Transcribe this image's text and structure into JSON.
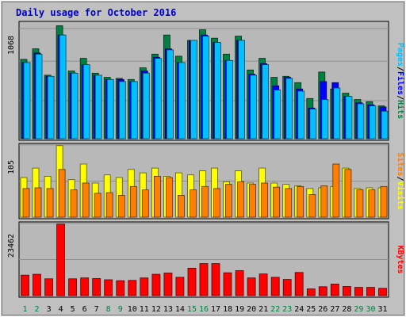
{
  "title": "Daily usage for October 2016",
  "colors": {
    "background": "#c0c0c0",
    "plot_bg": "#b8b8b8",
    "title": "#0000cc",
    "hits": "#008040",
    "files": "#0000ff",
    "pages": "#00c0ff",
    "visits": "#ffff00",
    "sites": "#ff8000",
    "kbytes": "#ff0000",
    "weekend_label": "#008040",
    "weekday_label": "#000000"
  },
  "chart_data": [
    {
      "type": "bar",
      "name": "hits-files-pages",
      "categories": [
        "1",
        "2",
        "3",
        "4",
        "5",
        "6",
        "7",
        "8",
        "9",
        "10",
        "11",
        "12",
        "13",
        "14",
        "15",
        "16",
        "17",
        "18",
        "19",
        "20",
        "21",
        "22",
        "23",
        "24",
        "25",
        "26",
        "27",
        "28",
        "29",
        "30",
        "31"
      ],
      "ymax_label": "1068",
      "ylim": [
        0,
        1068
      ],
      "legend": [
        {
          "label": "Pages",
          "key": "pages"
        },
        {
          "label": "/",
          "key": "sep"
        },
        {
          "label": "Files",
          "key": "files"
        },
        {
          "label": "/",
          "key": "sep"
        },
        {
          "label": "Hits",
          "key": "hits"
        }
      ],
      "series": [
        {
          "name": "Hits",
          "key": "hits",
          "values": [
            750,
            850,
            600,
            1068,
            640,
            760,
            620,
            580,
            570,
            560,
            670,
            800,
            980,
            780,
            930,
            1030,
            950,
            800,
            970,
            650,
            760,
            580,
            590,
            530,
            380,
            630,
            470,
            430,
            370,
            350,
            310
          ]
        },
        {
          "name": "Files",
          "key": "files",
          "values": [
            720,
            810,
            590,
            980,
            620,
            700,
            600,
            560,
            560,
            540,
            640,
            770,
            850,
            720,
            930,
            980,
            910,
            740,
            930,
            610,
            710,
            500,
            580,
            470,
            290,
            540,
            530,
            400,
            340,
            320,
            300
          ]
        },
        {
          "name": "Pages",
          "key": "pages",
          "values": [
            720,
            800,
            590,
            980,
            620,
            700,
            600,
            560,
            540,
            540,
            620,
            760,
            840,
            720,
            930,
            970,
            910,
            740,
            930,
            600,
            700,
            460,
            570,
            450,
            280,
            370,
            480,
            400,
            330,
            310,
            260
          ]
        }
      ],
      "weekend_days": [
        1,
        2,
        8,
        9,
        15,
        16,
        22,
        23,
        29,
        30
      ]
    },
    {
      "type": "bar",
      "name": "visits-sites",
      "categories": [
        "1",
        "2",
        "3",
        "4",
        "5",
        "6",
        "7",
        "8",
        "9",
        "10",
        "11",
        "12",
        "13",
        "14",
        "15",
        "16",
        "17",
        "18",
        "19",
        "20",
        "21",
        "22",
        "23",
        "24",
        "25",
        "26",
        "27",
        "28",
        "29",
        "30",
        "31"
      ],
      "ymax_label": "105",
      "ylim": [
        0,
        105
      ],
      "legend": [
        {
          "label": "Sites",
          "key": "sites"
        },
        {
          "label": "/",
          "key": "sep"
        },
        {
          "label": "Visits",
          "key": "visits"
        }
      ],
      "series": [
        {
          "name": "Visits",
          "key": "visits",
          "values": [
            58,
            72,
            60,
            105,
            55,
            78,
            50,
            62,
            58,
            70,
            65,
            72,
            60,
            65,
            62,
            68,
            72,
            52,
            68,
            50,
            72,
            50,
            48,
            46,
            42,
            43,
            45,
            72,
            42,
            43,
            43
          ]
        },
        {
          "name": "Sites",
          "key": "sites",
          "values": [
            42,
            43,
            42,
            70,
            40,
            50,
            35,
            36,
            32,
            45,
            40,
            60,
            58,
            32,
            40,
            45,
            42,
            48,
            52,
            48,
            50,
            44,
            42,
            45,
            33,
            46,
            78,
            70,
            40,
            40,
            45
          ]
        }
      ]
    },
    {
      "type": "bar",
      "name": "kbytes",
      "categories": [
        "1",
        "2",
        "3",
        "4",
        "5",
        "6",
        "7",
        "8",
        "9",
        "10",
        "11",
        "12",
        "13",
        "14",
        "15",
        "16",
        "17",
        "18",
        "19",
        "20",
        "21",
        "22",
        "23",
        "24",
        "25",
        "26",
        "27",
        "28",
        "29",
        "30",
        "31"
      ],
      "ymax_label": "23462",
      "ylim": [
        0,
        23462
      ],
      "legend": [
        {
          "label": "KBytes",
          "key": "kbytes"
        }
      ],
      "series": [
        {
          "name": "KBytes",
          "key": "kbytes",
          "values": [
            6700,
            7000,
            5500,
            23462,
            5500,
            5800,
            5600,
            5200,
            4900,
            5000,
            5800,
            7000,
            7400,
            6000,
            9000,
            10500,
            10500,
            7500,
            8200,
            5800,
            7100,
            6000,
            5300,
            7600,
            2200,
            2900,
            3800,
            3000,
            2700,
            2700,
            2400
          ]
        }
      ]
    }
  ]
}
